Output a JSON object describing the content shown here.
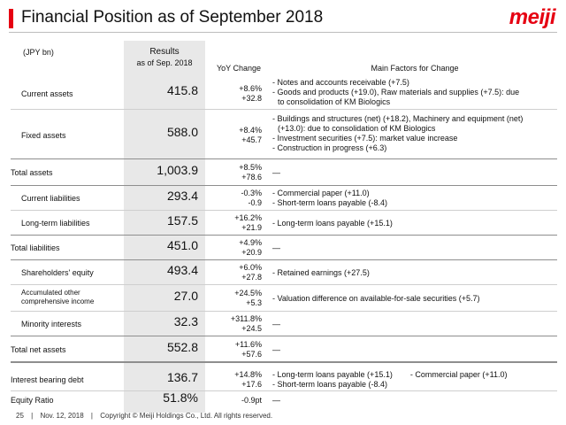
{
  "header": {
    "title": "Financial Position as of September 2018",
    "logo_text": "meiji",
    "accent_color": "#e60012"
  },
  "table": {
    "unit": "(JPY bn)",
    "col_results_line1": "Results",
    "col_results_line2": "as of Sep. 2018",
    "col_yoy": "YoY Change",
    "col_factors": "Main Factors for Change",
    "rows": [
      {
        "label": "Current assets",
        "value": "415.8",
        "yoy_pct": "+8.6%",
        "yoy_amt": "+32.8",
        "factors": [
          "- Notes and accounts receivable (+7.5)",
          "- Goods and products (+19.0), Raw materials and supplies (+7.5): due",
          "  to consolidation of KM Biologics"
        ]
      },
      {
        "label": "Fixed assets",
        "value": "588.0",
        "yoy_pct": "+8.4%",
        "yoy_amt": "+45.7",
        "factors": [
          "- Buildings and structures (net) (+18.2), Machinery and equipment (net)",
          "  (+13.0): due to consolidation of KM Biologics",
          "- Investment securities (+7.5): market value increase",
          "- Construction in progress (+6.3)"
        ]
      },
      {
        "label": "Total assets",
        "value": "1,003.9",
        "yoy_pct": "+8.5%",
        "yoy_amt": "+78.6",
        "factors": [
          "—"
        ]
      },
      {
        "label": "Current liabilities",
        "value": "293.4",
        "yoy_pct": "-0.3%",
        "yoy_amt": "-0.9",
        "factors": [
          "- Commercial paper (+11.0)",
          "- Short-term loans payable (-8.4)"
        ]
      },
      {
        "label": "Long-term liabilities",
        "value": "157.5",
        "yoy_pct": "+16.2%",
        "yoy_amt": "+21.9",
        "factors": [
          "- Long-term loans payable (+15.1)"
        ]
      },
      {
        "label": "Total liabilities",
        "value": "451.0",
        "yoy_pct": "+4.9%",
        "yoy_amt": "+20.9",
        "factors": [
          "—"
        ]
      },
      {
        "label": "Shareholders' equity",
        "value": "493.4",
        "yoy_pct": "+6.0%",
        "yoy_amt": "+27.8",
        "factors": [
          "- Retained earnings (+27.5)"
        ]
      },
      {
        "label": "Accumulated other comprehensive income",
        "label_line1": "Accumulated other",
        "label_line2": "comprehensive income",
        "value": "27.0",
        "yoy_pct": "+24.5%",
        "yoy_amt": "+5.3",
        "factors": [
          "- Valuation difference on available-for-sale securities (+5.7)"
        ]
      },
      {
        "label": "Minority interests",
        "value": "32.3",
        "yoy_pct": "+311.8%",
        "yoy_amt": "+24.5",
        "factors": [
          "—"
        ]
      },
      {
        "label": "Total net assets",
        "value": "552.8",
        "yoy_pct": "+11.6%",
        "yoy_amt": "+57.6",
        "factors": [
          "—"
        ]
      },
      {
        "label": "Interest bearing debt",
        "value": "136.7",
        "yoy_pct": "+14.8%",
        "yoy_amt": "+17.6",
        "factors": [
          "- Long-term loans payable (+15.1)        - Commercial paper (+11.0)",
          "- Short-term loans payable (-8.4)"
        ]
      },
      {
        "label": "Equity Ratio",
        "value": "51.8%",
        "yoy_pct": "-0.9pt",
        "yoy_amt": "",
        "factors": [
          "—"
        ]
      }
    ]
  },
  "footer": {
    "page": "25",
    "date": "Nov. 12, 2018",
    "copyright": "Copyright © Meiji Holdings Co., Ltd. All rights reserved."
  }
}
